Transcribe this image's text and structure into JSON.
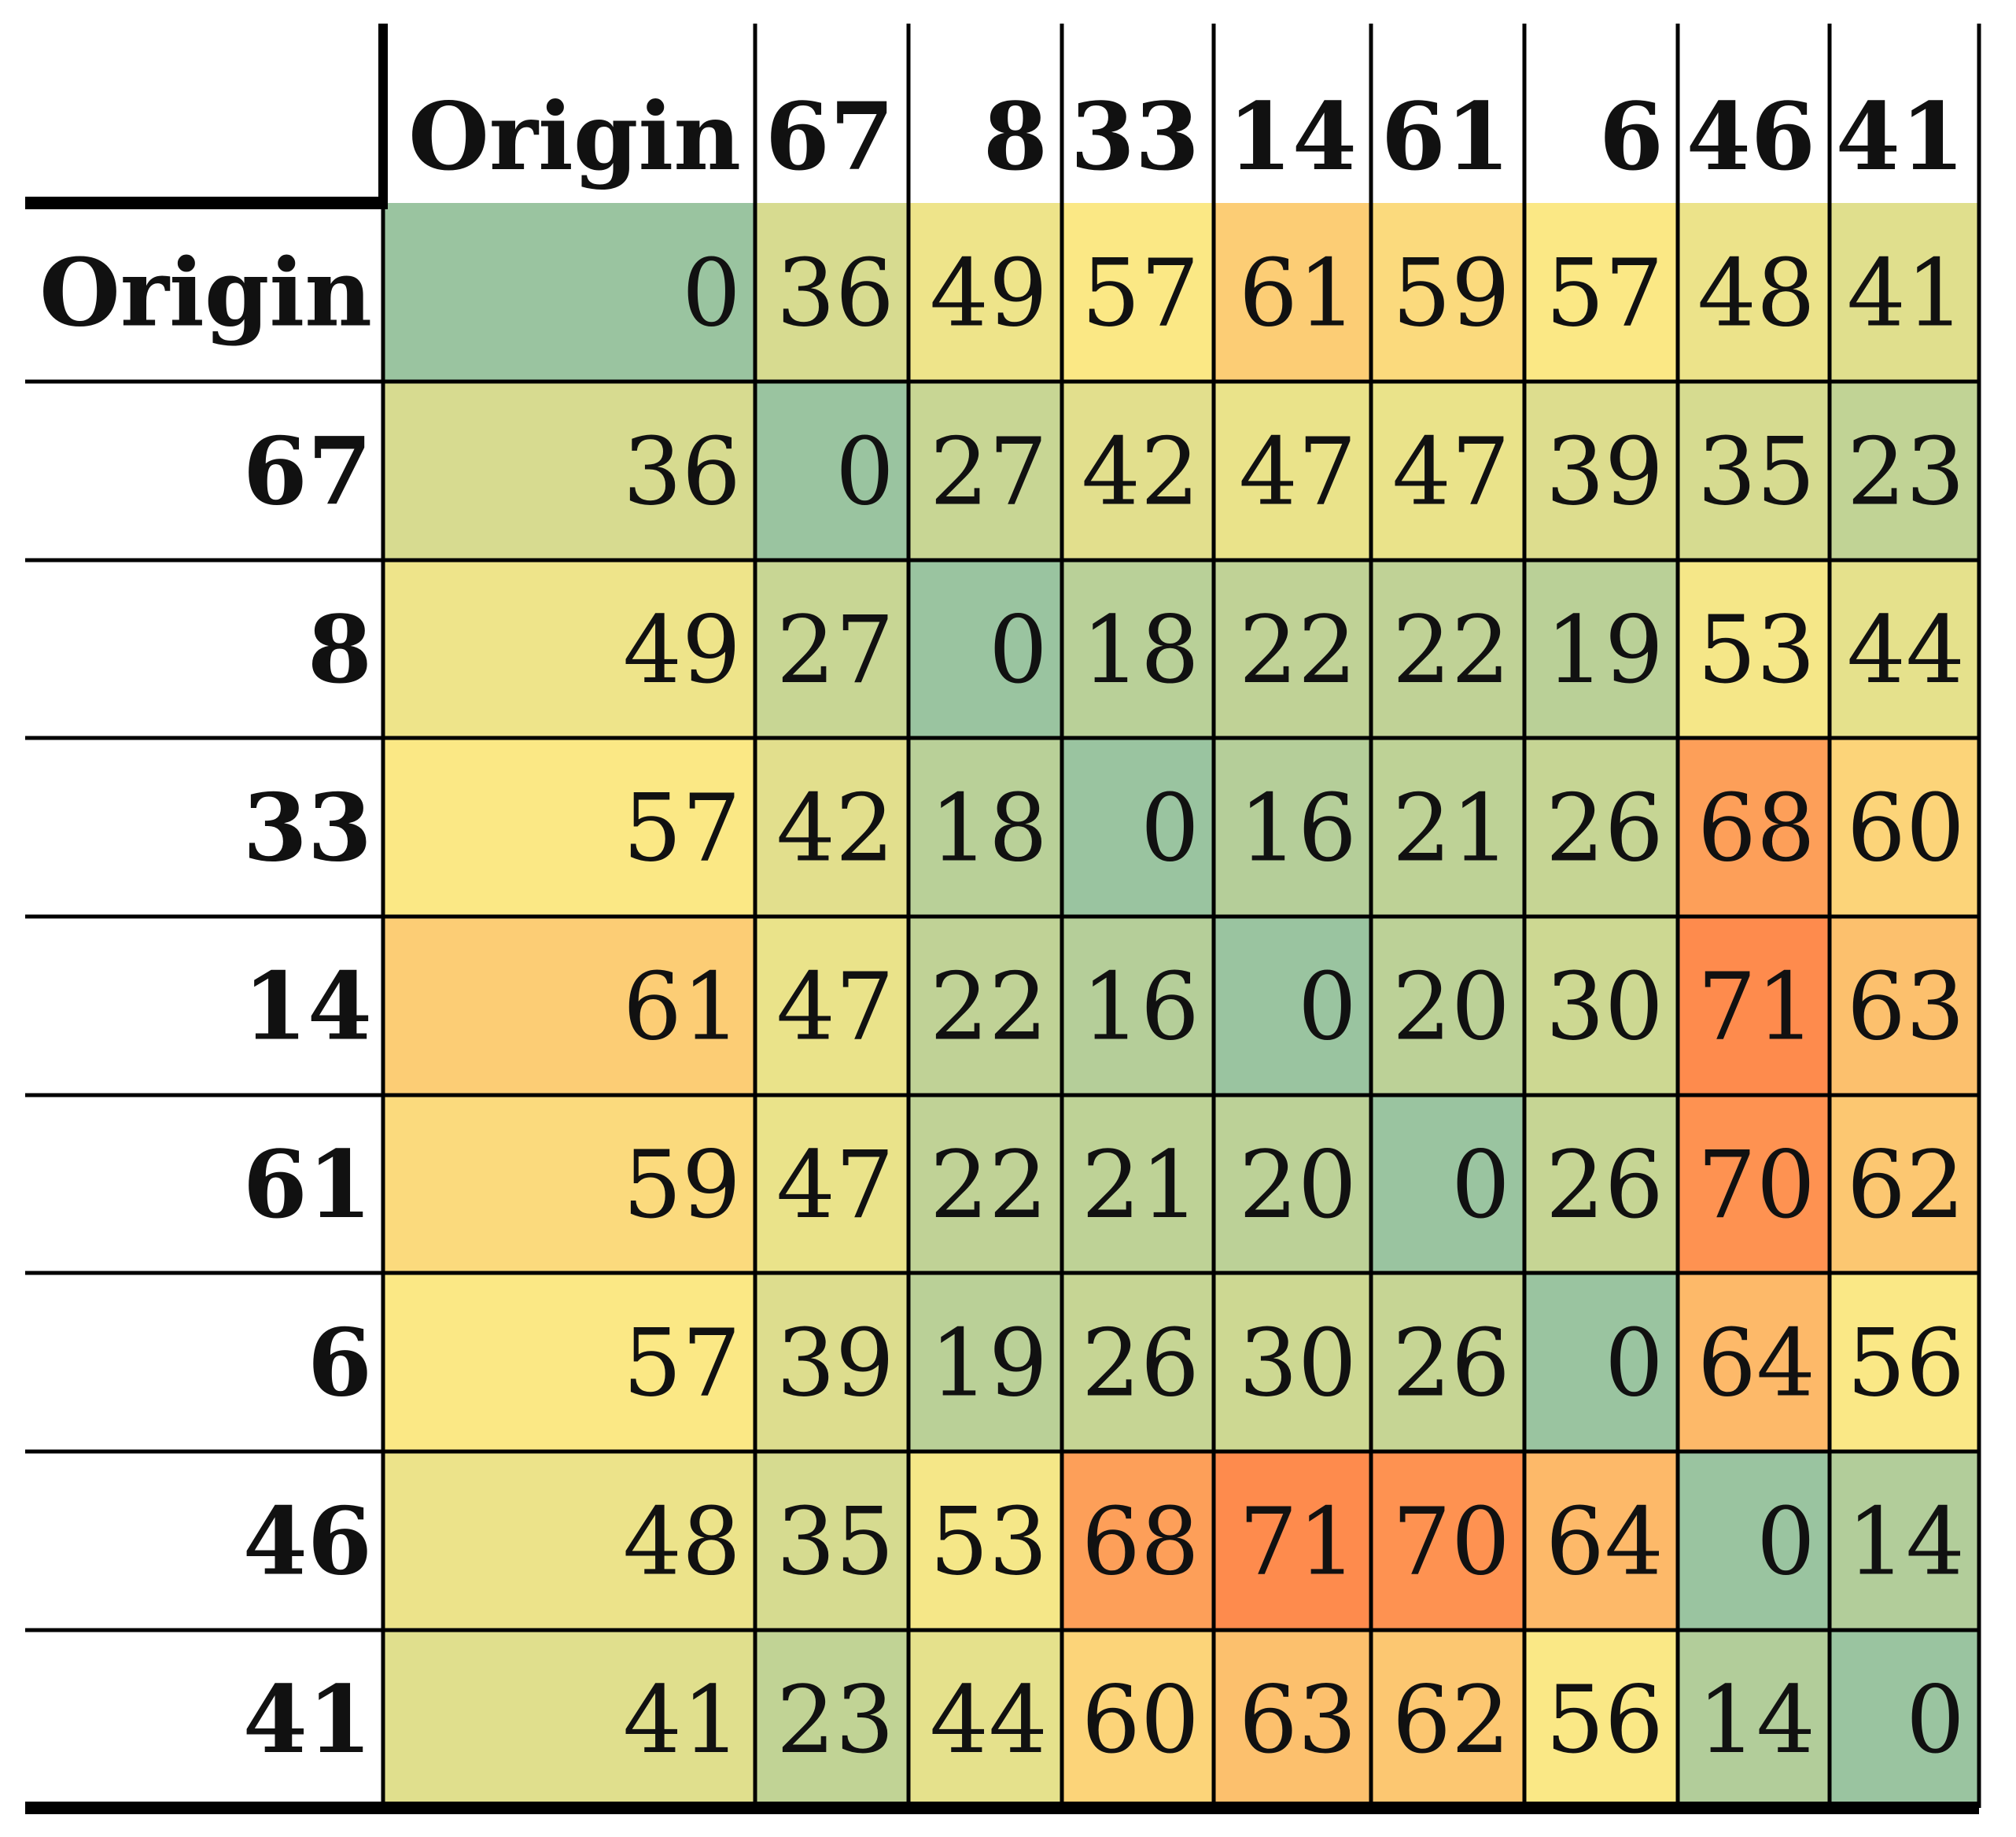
{
  "chart_data": {
    "type": "heatmap",
    "labels": [
      "Origin",
      "67",
      "8",
      "33",
      "14",
      "61",
      "6",
      "46",
      "41"
    ],
    "matrix": [
      [
        0,
        36,
        49,
        57,
        61,
        59,
        57,
        48,
        41
      ],
      [
        36,
        0,
        27,
        42,
        47,
        47,
        39,
        35,
        23
      ],
      [
        49,
        27,
        0,
        18,
        22,
        22,
        19,
        53,
        44
      ],
      [
        57,
        42,
        18,
        0,
        16,
        21,
        26,
        68,
        60
      ],
      [
        61,
        47,
        22,
        16,
        0,
        20,
        30,
        71,
        63
      ],
      [
        59,
        47,
        22,
        21,
        20,
        0,
        26,
        70,
        62
      ],
      [
        57,
        39,
        19,
        26,
        30,
        26,
        0,
        64,
        56
      ],
      [
        48,
        35,
        53,
        68,
        71,
        70,
        64,
        0,
        14
      ],
      [
        41,
        23,
        44,
        60,
        63,
        62,
        56,
        14,
        0
      ]
    ],
    "color_range": [
      0,
      71
    ],
    "colors": {
      "low": "#9ac4a0",
      "mid": "#fbe986",
      "high": "#fe8b4d"
    }
  }
}
